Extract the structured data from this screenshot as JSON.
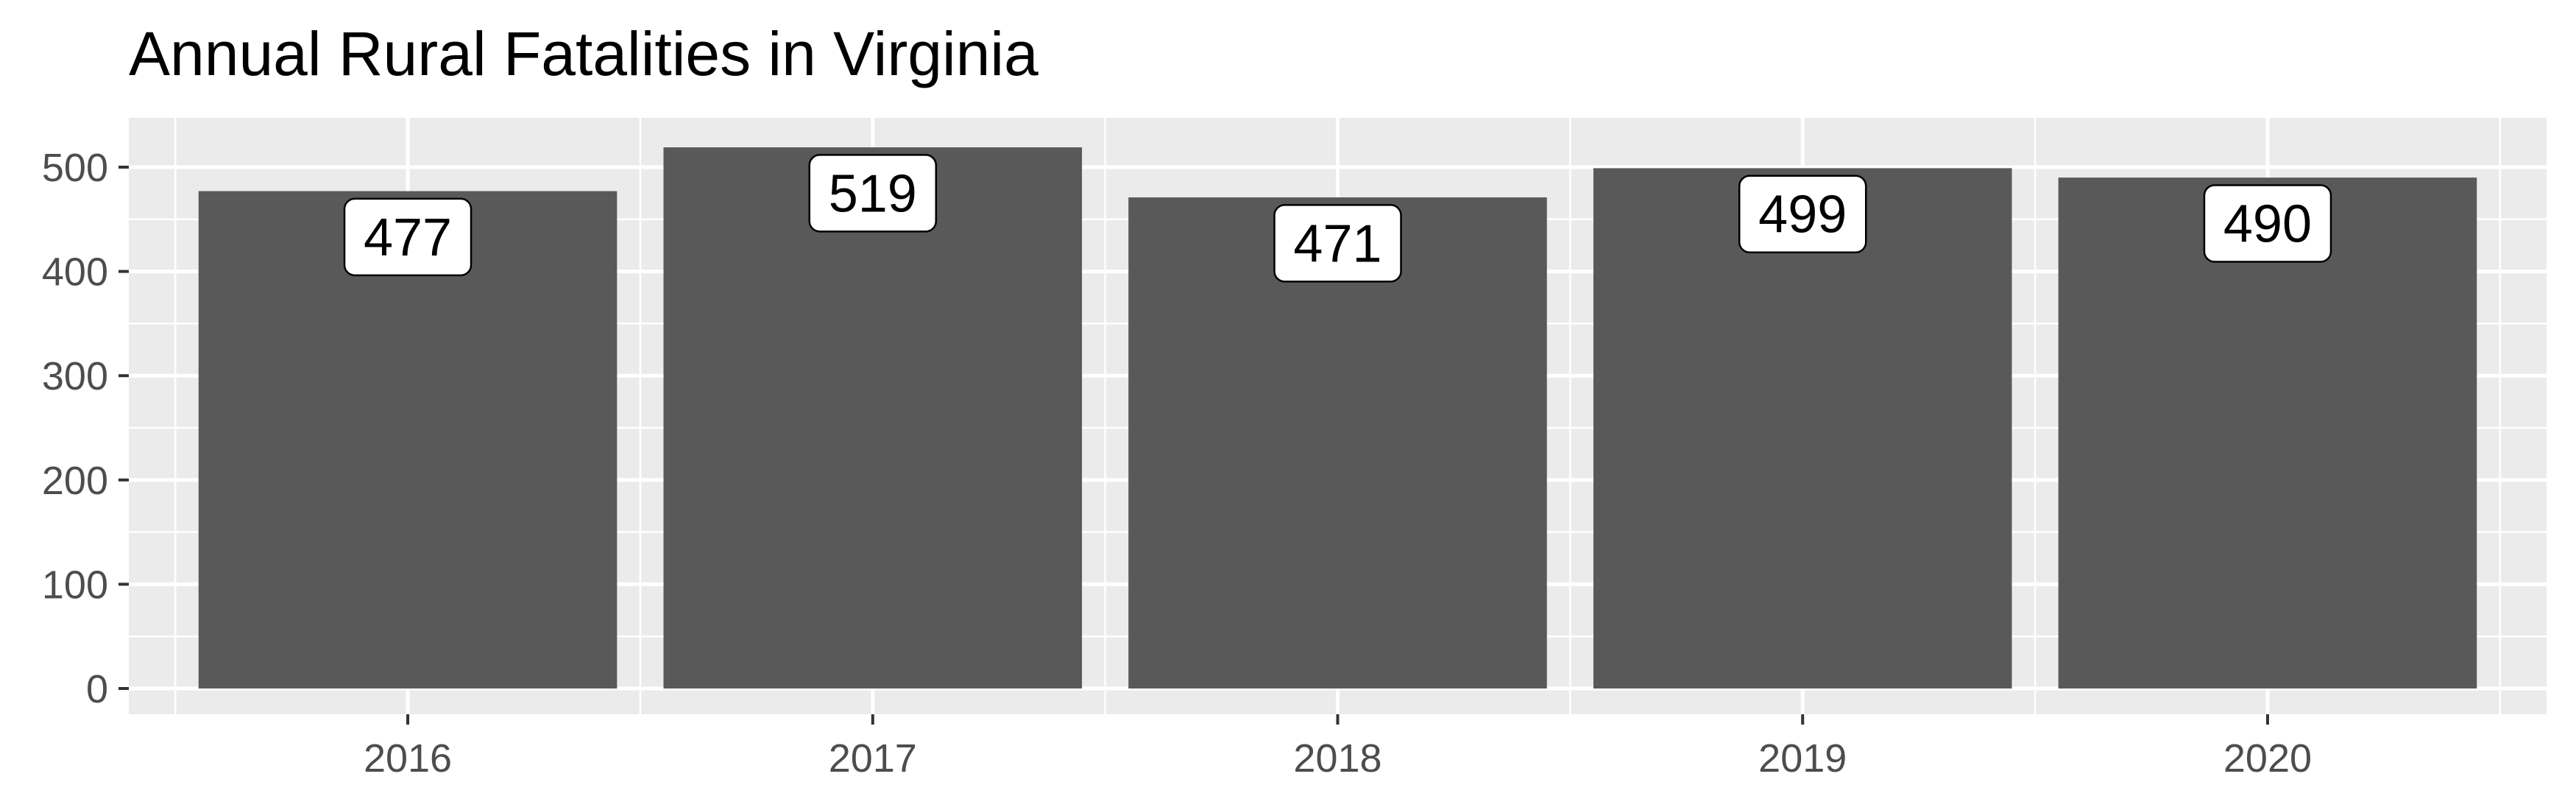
{
  "chart_data": {
    "type": "bar",
    "title": "Annual Rural Fatalities in Virginia",
    "xlabel": "",
    "ylabel": "",
    "categories": [
      "2016",
      "2017",
      "2018",
      "2019",
      "2020"
    ],
    "values": [
      477,
      519,
      471,
      499,
      490
    ],
    "data_labels": [
      "477",
      "519",
      "471",
      "499",
      "490"
    ],
    "ylim": [
      0,
      545
    ],
    "yticks": [
      0,
      100,
      200,
      300,
      400,
      500
    ],
    "ytick_labels": [
      "0",
      "100",
      "200",
      "300",
      "400",
      "500"
    ],
    "grid": true,
    "legend": "none",
    "colors": {
      "bar": "#595959",
      "panel": "#ebebeb",
      "grid": "#ffffff",
      "label_box": "#ffffff",
      "label_border": "#000000"
    }
  }
}
